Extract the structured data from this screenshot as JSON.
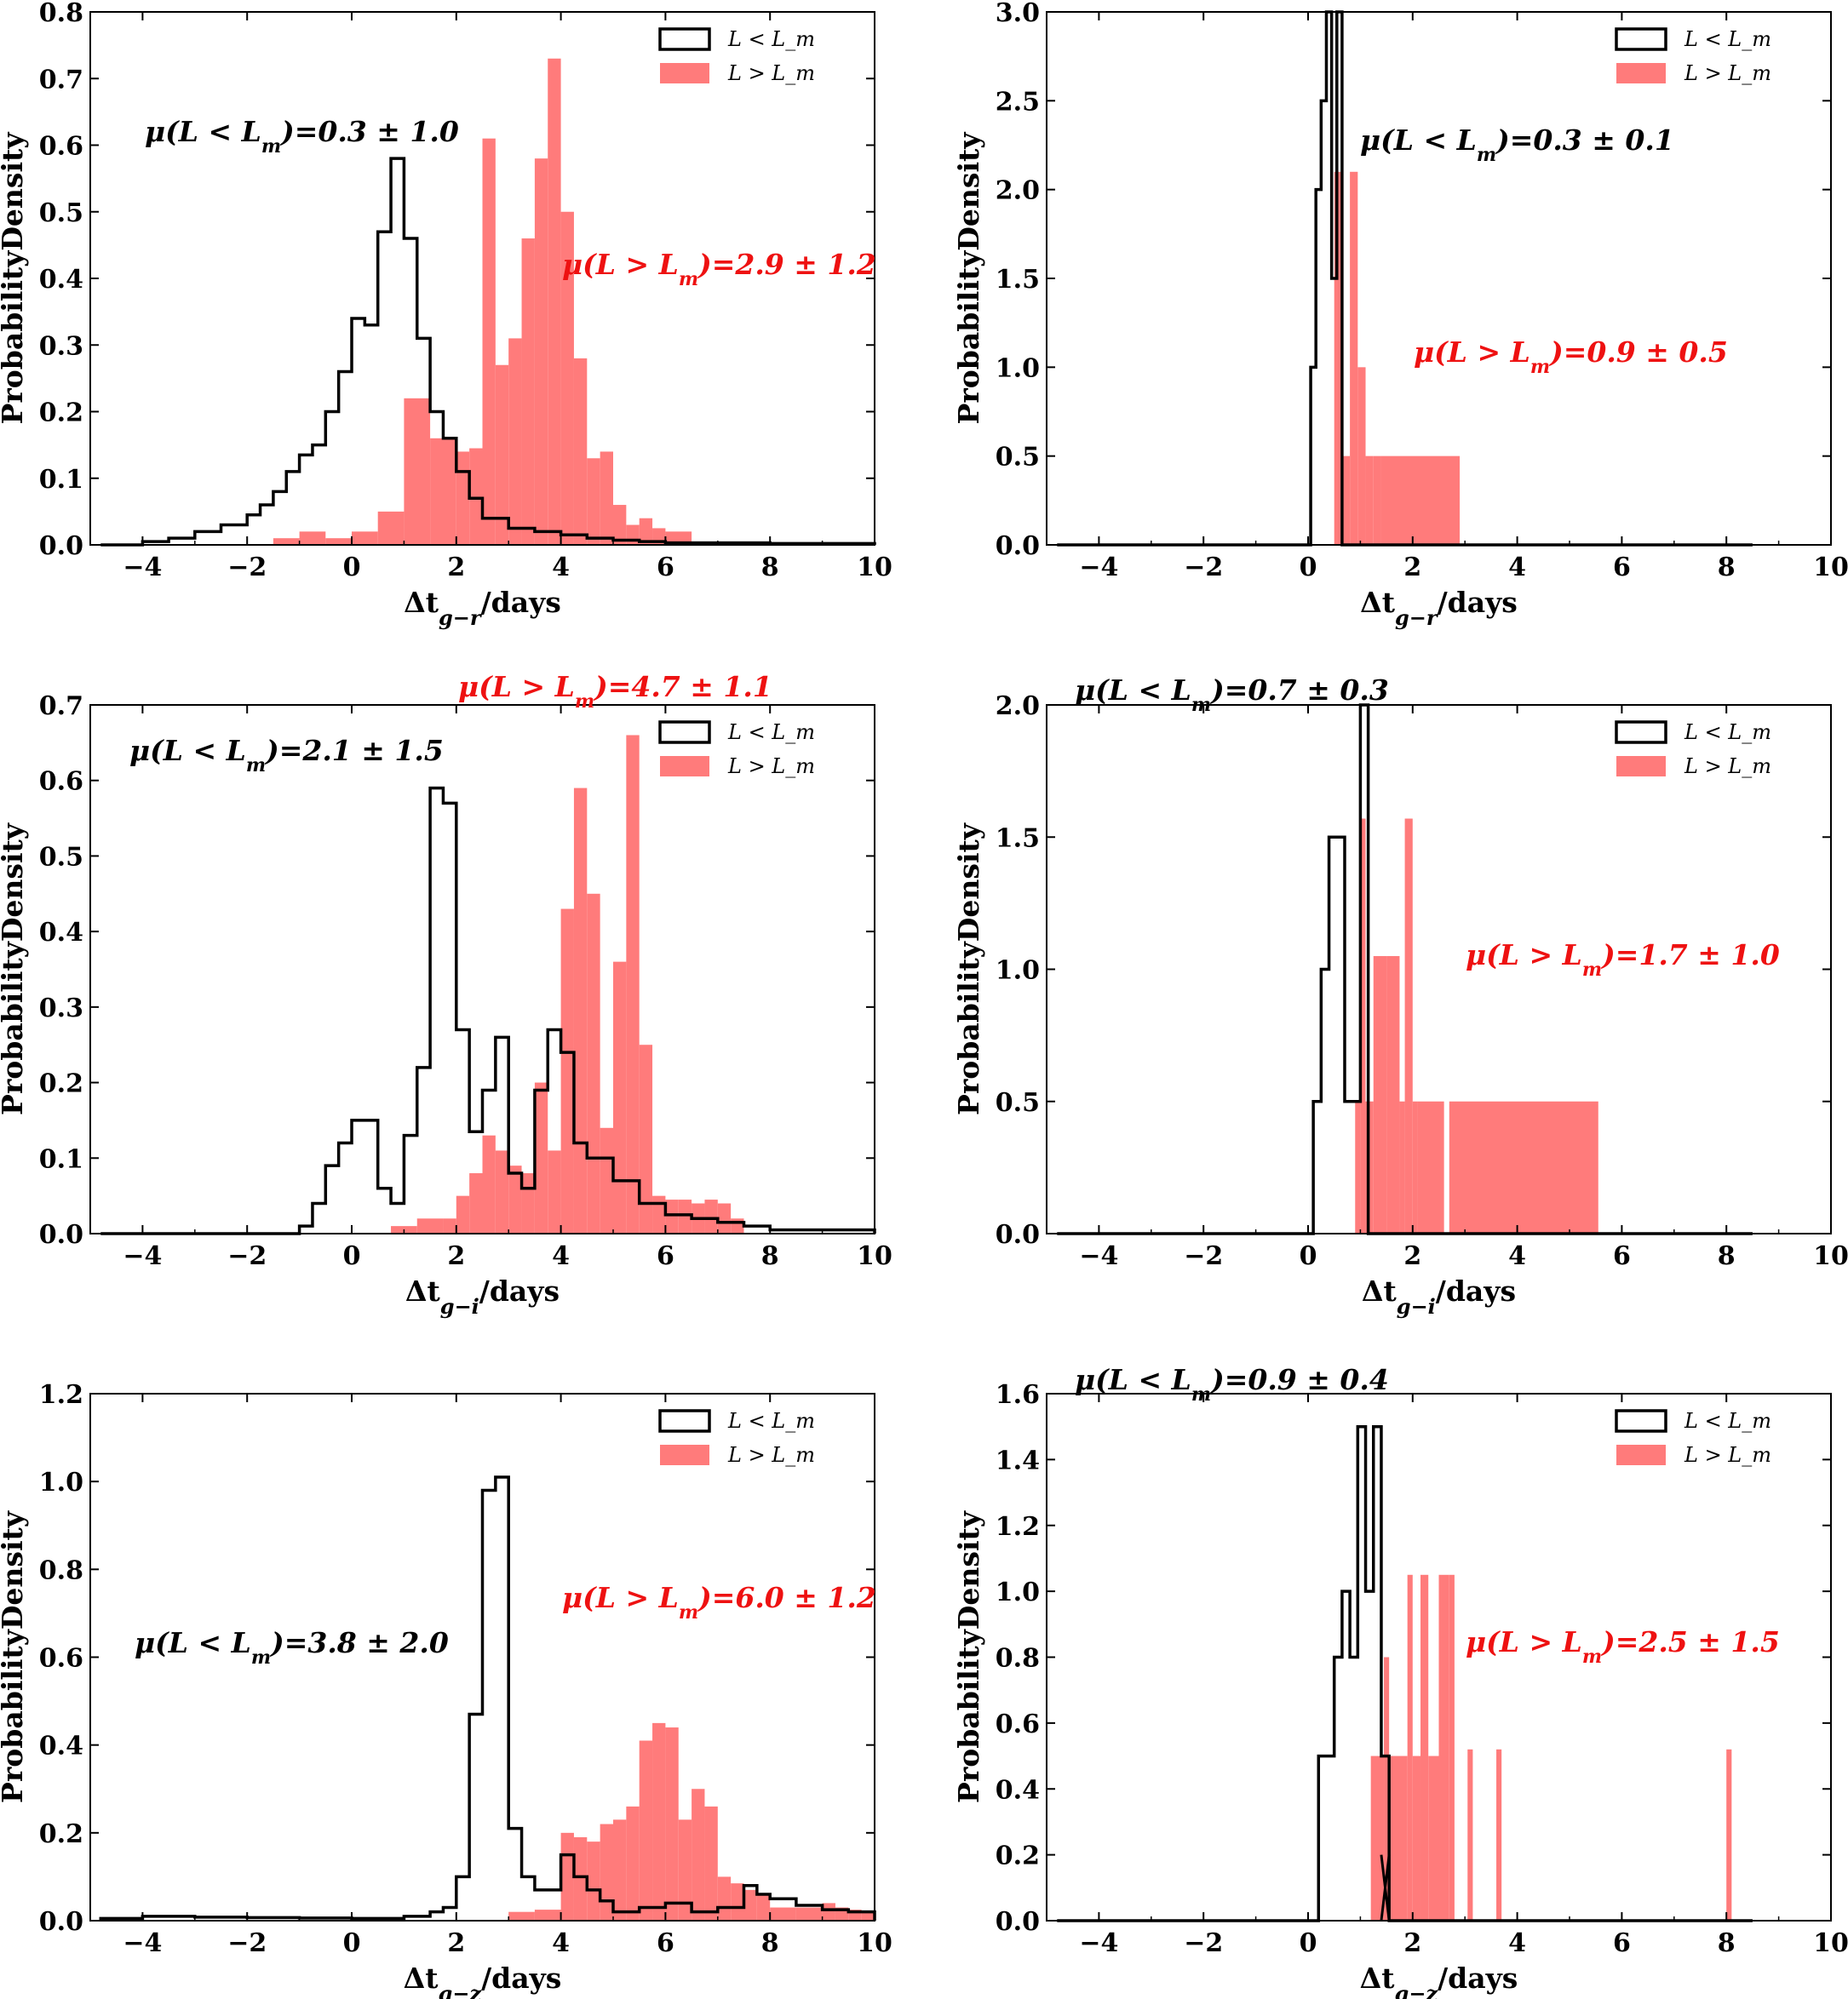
{
  "colors": {
    "low": "#000000",
    "high": "#ff7b7b",
    "high_text": "#ee1111"
  },
  "chart_data": [
    {
      "type": "histogram",
      "panel": "top-left",
      "xlabel_prefix": "Δt",
      "xlabel_sub": "g−r",
      "xlabel_suffix": "/days",
      "ylabel": "ProbabilityDensity",
      "xlim": [
        -5,
        10
      ],
      "ylim": [
        0,
        0.8
      ],
      "xticks": [
        "−4",
        "−2",
        "0",
        "2",
        "4",
        "6",
        "8",
        "10"
      ],
      "yticks": [
        "0.0",
        "0.1",
        "0.2",
        "0.3",
        "0.4",
        "0.5",
        "0.6",
        "0.7",
        "0.8"
      ],
      "legend": {
        "position": "top-right",
        "entries": [
          "L < L_m",
          "L > L_m"
        ]
      },
      "annotations": [
        {
          "series": "low",
          "text": "μ(L < Lm)=0.3 ± 1.0",
          "pos": "upper-left"
        },
        {
          "series": "high",
          "text": "μ(L > Lm)=2.9 ± 1.2",
          "pos": "right"
        }
      ],
      "series": [
        {
          "name": "L < L_m",
          "style": "step",
          "x": [
            -4.8,
            -4,
            -3.5,
            -3,
            -2.5,
            -2,
            -1.75,
            -1.5,
            -1.25,
            -1,
            -0.75,
            -0.5,
            -0.25,
            0,
            0.25,
            0.5,
            0.75,
            1,
            1.25,
            1.5,
            1.75,
            2,
            2.25,
            2.5,
            3,
            3.5,
            4,
            4.5,
            5,
            5.5,
            6,
            8,
            10
          ],
          "values": [
            0,
            0.005,
            0.01,
            0.02,
            0.03,
            0.045,
            0.06,
            0.08,
            0.11,
            0.135,
            0.15,
            0.2,
            0.26,
            0.34,
            0.33,
            0.47,
            0.58,
            0.46,
            0.31,
            0.2,
            0.16,
            0.11,
            0.07,
            0.04,
            0.025,
            0.02,
            0.015,
            0.01,
            0.007,
            0.005,
            0.003,
            0.002
          ]
        },
        {
          "name": "L > L_m",
          "style": "bar",
          "x": [
            -1.5,
            -1,
            -0.5,
            0,
            0.5,
            1,
            1.5,
            2,
            2.25,
            2.5,
            2.75,
            3,
            3.25,
            3.5,
            3.75,
            4,
            4.25,
            4.5,
            4.75,
            5,
            5.25,
            5.5,
            5.75,
            6,
            6.5
          ],
          "values": [
            0.01,
            0.02,
            0.01,
            0.02,
            0.05,
            0.22,
            0.16,
            0.14,
            0.145,
            0.61,
            0.27,
            0.31,
            0.46,
            0.58,
            0.73,
            0.5,
            0.28,
            0.13,
            0.14,
            0.06,
            0.03,
            0.04,
            0.025,
            0.02
          ]
        }
      ]
    },
    {
      "type": "histogram",
      "panel": "top-right",
      "xlabel_prefix": "Δt",
      "xlabel_sub": "g−r",
      "xlabel_suffix": "/days",
      "ylabel": "ProbabilityDensity",
      "xlim": [
        -5,
        10
      ],
      "ylim": [
        0,
        3.0
      ],
      "xticks": [
        "−4",
        "−2",
        "0",
        "2",
        "4",
        "6",
        "8",
        "10"
      ],
      "yticks": [
        "0.0",
        "0.5",
        "1.0",
        "1.5",
        "2.0",
        "2.5",
        "3.0"
      ],
      "legend": {
        "position": "top-right",
        "entries": [
          "L < L_m",
          "L > L_m"
        ]
      },
      "annotations": [
        {
          "series": "low",
          "text": "μ(L < Lm)=0.3 ± 0.1",
          "pos": "upper-left"
        },
        {
          "series": "high",
          "text": "μ(L > Lm)=0.9 ± 0.5",
          "pos": "right"
        }
      ],
      "series": [
        {
          "name": "L < L_m",
          "style": "step",
          "x": [
            -4.8,
            0.05,
            0.15,
            0.25,
            0.35,
            0.45,
            0.55,
            0.65,
            8.5
          ],
          "values": [
            0,
            1.0,
            2.0,
            2.5,
            3.0,
            1.5,
            3.0,
            0
          ]
        },
        {
          "name": "L > L_m",
          "style": "bar",
          "x": [
            0.5,
            0.65,
            0.8,
            0.95,
            1.1,
            1.25,
            1.4,
            2.9,
            3.0
          ],
          "values": [
            2.1,
            0.5,
            2.1,
            1.0,
            0.5,
            0.5,
            0.5,
            0,
            0.5
          ]
        }
      ]
    },
    {
      "type": "histogram",
      "panel": "middle-left",
      "xlabel_prefix": "Δt",
      "xlabel_sub": "g−i",
      "xlabel_suffix": "/days",
      "ylabel": "ProbabilityDensity",
      "xlim": [
        -5,
        10
      ],
      "ylim": [
        0,
        0.7
      ],
      "xticks": [
        "−4",
        "−2",
        "0",
        "2",
        "4",
        "6",
        "8",
        "10"
      ],
      "yticks": [
        "0.0",
        "0.1",
        "0.2",
        "0.3",
        "0.4",
        "0.5",
        "0.6",
        "0.7"
      ],
      "legend": {
        "position": "top-right",
        "entries": [
          "L < L_m",
          "L > L_m"
        ]
      },
      "annotations": [
        {
          "series": "low",
          "text": "μ(L < Lm)=2.1 ± 1.5",
          "pos": "upper-left"
        },
        {
          "series": "high",
          "text": "μ(L > Lm)=4.7 ± 1.1",
          "pos": "top"
        }
      ],
      "series": [
        {
          "name": "L < L_m",
          "style": "step",
          "x": [
            -4.8,
            -1,
            -0.75,
            -0.5,
            -0.25,
            0,
            0.25,
            0.5,
            0.75,
            1,
            1.25,
            1.5,
            1.75,
            2,
            2.25,
            2.5,
            2.75,
            3,
            3.25,
            3.5,
            3.75,
            4,
            4.25,
            4.5,
            5,
            5.5,
            6,
            6.5,
            7,
            7.5,
            8,
            10
          ],
          "values": [
            0,
            0.01,
            0.04,
            0.09,
            0.12,
            0.15,
            0.15,
            0.06,
            0.04,
            0.13,
            0.22,
            0.59,
            0.57,
            0.27,
            0.135,
            0.19,
            0.26,
            0.08,
            0.06,
            0.19,
            0.27,
            0.24,
            0.12,
            0.1,
            0.07,
            0.04,
            0.025,
            0.02,
            0.015,
            0.01,
            0.005
          ]
        },
        {
          "name": "L > L_m",
          "style": "bar",
          "x": [
            0.75,
            1.25,
            1.75,
            2,
            2.25,
            2.5,
            2.75,
            3,
            3.25,
            3.5,
            3.75,
            4,
            4.25,
            4.5,
            4.75,
            5,
            5.25,
            5.5,
            5.75,
            6,
            6.25,
            6.5,
            6.75,
            7,
            7.25,
            7.5
          ],
          "values": [
            0.01,
            0.02,
            0.02,
            0.05,
            0.08,
            0.13,
            0.11,
            0.09,
            0.08,
            0.2,
            0.11,
            0.43,
            0.59,
            0.45,
            0.14,
            0.36,
            0.66,
            0.25,
            0.05,
            0.045,
            0.045,
            0.04,
            0.045,
            0.04,
            0.02
          ]
        }
      ]
    },
    {
      "type": "histogram",
      "panel": "middle-right",
      "xlabel_prefix": "Δt",
      "xlabel_sub": "g−i",
      "xlabel_suffix": "/days",
      "ylabel": "ProbabilityDensity",
      "xlim": [
        -5,
        10
      ],
      "ylim": [
        0,
        2.0
      ],
      "xticks": [
        "−4",
        "−2",
        "0",
        "2",
        "4",
        "6",
        "8",
        "10"
      ],
      "yticks": [
        "0.0",
        "0.5",
        "1.0",
        "1.5",
        "2.0"
      ],
      "legend": {
        "position": "top-right",
        "entries": [
          "L < L_m",
          "L > L_m"
        ]
      },
      "annotations": [
        {
          "series": "low",
          "text": "μ(L < Lm)=0.7 ± 0.3",
          "pos": "top"
        },
        {
          "series": "high",
          "text": "μ(L > Lm)=1.7 ± 1.0",
          "pos": "right"
        }
      ],
      "series": [
        {
          "name": "L < L_m",
          "style": "step",
          "x": [
            -4.8,
            0.1,
            0.25,
            0.4,
            0.55,
            0.7,
            0.85,
            1.0,
            1.15,
            8.5
          ],
          "values": [
            0,
            0.5,
            1.0,
            1.5,
            1.5,
            0.5,
            0.5,
            2.0,
            0
          ]
        },
        {
          "name": "L > L_m",
          "style": "bar",
          "x": [
            0.9,
            1.0,
            1.1,
            1.25,
            1.5,
            1.75,
            1.85,
            2.0,
            2.1,
            2.6,
            2.7,
            5.55,
            5.65
          ],
          "values": [
            0.5,
            1.57,
            0.5,
            1.05,
            1.05,
            0.5,
            1.57,
            0.5,
            0.5,
            0,
            0.5,
            0,
            0.5
          ]
        }
      ]
    },
    {
      "type": "histogram",
      "panel": "bottom-left",
      "xlabel_prefix": "Δt",
      "xlabel_sub": "g−z",
      "xlabel_suffix": "/days",
      "ylabel": "ProbabilityDensity",
      "xlim": [
        -5,
        10
      ],
      "ylim": [
        0,
        1.2
      ],
      "xticks": [
        "−4",
        "−2",
        "0",
        "2",
        "4",
        "6",
        "8",
        "10"
      ],
      "yticks": [
        "0.0",
        "0.2",
        "0.4",
        "0.6",
        "0.8",
        "1.0",
        "1.2"
      ],
      "legend": {
        "position": "top-right",
        "entries": [
          "L < L_m",
          "L > L_m"
        ]
      },
      "annotations": [
        {
          "series": "low",
          "text": "μ(L < Lm)=3.8 ± 2.0",
          "pos": "left"
        },
        {
          "series": "high",
          "text": "μ(L > Lm)=6.0 ± 1.2",
          "pos": "right"
        }
      ],
      "series": [
        {
          "name": "L < L_m",
          "style": "step",
          "x": [
            -4.8,
            -4,
            -3,
            -2,
            -1,
            0,
            1,
            1.5,
            1.75,
            2,
            2.25,
            2.5,
            2.75,
            3,
            3.25,
            3.5,
            4,
            4.25,
            4.5,
            4.75,
            5,
            5.5,
            6,
            6.5,
            7,
            7.5,
            7.75,
            8,
            8.5,
            9,
            9.5,
            10
          ],
          "values": [
            0.005,
            0.01,
            0.008,
            0.007,
            0.006,
            0.005,
            0.01,
            0.02,
            0.03,
            0.1,
            0.47,
            0.98,
            1.01,
            0.21,
            0.1,
            0.07,
            0.15,
            0.1,
            0.07,
            0.045,
            0.02,
            0.03,
            0.04,
            0.02,
            0.03,
            0.08,
            0.06,
            0.05,
            0.035,
            0.025,
            0.02
          ]
        },
        {
          "name": "L > L_m",
          "style": "bar",
          "x": [
            3,
            3.5,
            4,
            4.25,
            4.5,
            4.75,
            5,
            5.25,
            5.5,
            5.75,
            6,
            6.25,
            6.5,
            6.75,
            7,
            7.25,
            7.5,
            7.75,
            8,
            8.5,
            9,
            9.25,
            9.5,
            9.75,
            10
          ],
          "values": [
            0.02,
            0.025,
            0.2,
            0.19,
            0.18,
            0.22,
            0.23,
            0.26,
            0.41,
            0.45,
            0.44,
            0.23,
            0.3,
            0.26,
            0.1,
            0.085,
            0.07,
            0.06,
            0.03,
            0.03,
            0.04,
            0.03,
            0.025,
            0.02
          ]
        }
      ]
    },
    {
      "type": "histogram",
      "panel": "bottom-right",
      "xlabel_prefix": "Δt",
      "xlabel_sub": "g−z",
      "xlabel_suffix": "/days",
      "ylabel": "ProbabilityDensity",
      "xlim": [
        -5,
        10
      ],
      "ylim": [
        0,
        1.6
      ],
      "xticks": [
        "−4",
        "−2",
        "0",
        "2",
        "4",
        "6",
        "8",
        "10"
      ],
      "yticks": [
        "0.0",
        "0.2",
        "0.4",
        "0.6",
        "0.8",
        "1.0",
        "1.2",
        "1.4",
        "1.6"
      ],
      "legend": {
        "position": "top-right",
        "entries": [
          "L < L_m",
          "L > L_m"
        ]
      },
      "annotations": [
        {
          "series": "low",
          "text": "μ(L < Lm)=0.9 ± 0.4",
          "pos": "top"
        },
        {
          "series": "high",
          "text": "μ(L > Lm)=2.5 ± 1.5",
          "pos": "right"
        }
      ],
      "series": [
        {
          "name": "L < L_m",
          "style": "step",
          "x": [
            -4.8,
            0.2,
            0.35,
            0.5,
            0.65,
            0.8,
            0.95,
            1.1,
            1.25,
            1.4,
            1.55,
            8.5
          ],
          "values": [
            0,
            0.5,
            0.5,
            0.8,
            1.0,
            0.8,
            1.5,
            1.0,
            1.5,
            0.5,
            0
          ],
          "tail_segments": [
            [
              1.55,
              1.4,
              0.2
            ],
            [
              1.4,
              1.55,
              0.2
            ]
          ]
        },
        {
          "name": "L > L_m",
          "style": "bar",
          "x": [
            1.2,
            1.45,
            1.55,
            1.9,
            2.0,
            2.15,
            2.3,
            2.5,
            2.7,
            2.8,
            3.05,
            3.15,
            3.6,
            3.7,
            8.0,
            8.1
          ],
          "values": [
            0.5,
            0.8,
            0.5,
            1.05,
            0.5,
            1.05,
            0.5,
            1.05,
            1.05,
            0,
            0.52,
            0,
            0.52,
            0,
            0.52
          ]
        }
      ]
    }
  ]
}
